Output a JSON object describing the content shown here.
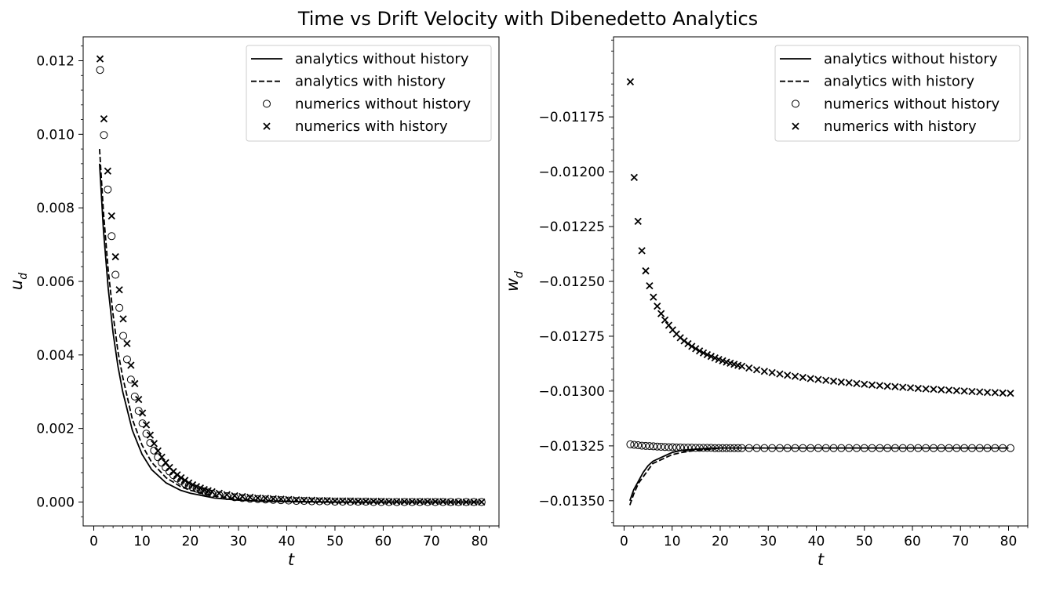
{
  "title": "Time vs Drift Velocity with Dibenedetto Analytics",
  "chart_data": [
    {
      "type": "line",
      "xlabel": "t",
      "ylabel_main": "u",
      "ylabel_sub": "d",
      "xlim": [
        -2.2,
        84
      ],
      "ylim": [
        -0.00065,
        0.01265
      ],
      "xticks": [
        0,
        10,
        20,
        30,
        40,
        50,
        60,
        70,
        80
      ],
      "xtick_labels": [
        "0",
        "10",
        "20",
        "30",
        "40",
        "50",
        "60",
        "70",
        "80"
      ],
      "yticks": [
        0.0,
        0.002,
        0.004,
        0.006,
        0.008,
        0.01,
        0.012
      ],
      "ytick_labels": [
        "0.000",
        "0.002",
        "0.004",
        "0.006",
        "0.008",
        "0.010",
        "0.012"
      ],
      "legend_position": "upper right",
      "legend": [
        "analytics without history",
        "analytics with history",
        "numerics without history",
        "numerics with history"
      ],
      "series": [
        {
          "name": "analytics without history",
          "style": "solid",
          "x": [
            1.2,
            2,
            3,
            4,
            5,
            6,
            8,
            10,
            12,
            15,
            18,
            20,
            25,
            30,
            35,
            40,
            50,
            60,
            70,
            80
          ],
          "y": [
            0.0092,
            0.0074,
            0.0058,
            0.0046,
            0.0037,
            0.003,
            0.00195,
            0.0013,
            0.00088,
            0.00052,
            0.00032,
            0.00024,
            0.00011,
            5e-05,
            2e-05,
            1e-05,
            0.0,
            0.0,
            0.0,
            0.0
          ]
        },
        {
          "name": "analytics with history",
          "style": "dashed",
          "x": [
            1.2,
            2,
            3,
            4,
            5,
            6,
            8,
            10,
            12,
            15,
            18,
            20,
            25,
            30,
            35,
            40,
            50,
            60,
            70,
            80
          ],
          "y": [
            0.0096,
            0.0079,
            0.0063,
            0.0051,
            0.0041,
            0.0034,
            0.00225,
            0.00155,
            0.00108,
            0.00066,
            0.00042,
            0.00032,
            0.00016,
            8e-05,
            4e-05,
            2e-05,
            0.0,
            0.0,
            0.0,
            0.0
          ]
        },
        {
          "name": "numerics without history",
          "style": "circle",
          "x": [
            1.3,
            2.1,
            2.9,
            3.7,
            4.5,
            5.3,
            6.1,
            6.9,
            7.7,
            8.5,
            9.3,
            10.1,
            10.9,
            11.7,
            12.5,
            13.3,
            14.1,
            14.9,
            15.7,
            16.5,
            17.3,
            18.1,
            18.9,
            19.7,
            20.5,
            21.3,
            22.1,
            22.9,
            23.7,
            24.5,
            26,
            27.6,
            29.2,
            30.8,
            32.4,
            34,
            35.6,
            37.2,
            38.8,
            40.4,
            42,
            43.6,
            45.2,
            46.8,
            48.4,
            50,
            51.6,
            53.2,
            54.8,
            56.4,
            58,
            59.6,
            61.2,
            62.8,
            64.4,
            66,
            67.6,
            69.2,
            70.8,
            72.4,
            74,
            75.6,
            77.2,
            78.8,
            80.4
          ],
          "y": [
            0.01175,
            0.00998,
            0.0085,
            0.00723,
            0.00618,
            0.00528,
            0.00452,
            0.00388,
            0.00333,
            0.00287,
            0.00248,
            0.00214,
            0.00186,
            0.00161,
            0.0014,
            0.00122,
            0.00107,
            0.00094,
            0.00083,
            0.00073,
            0.00064,
            0.00057,
            0.0005,
            0.00045,
            0.0004,
            0.00036,
            0.00032,
            0.00029,
            0.00026,
            0.00023,
            0.00019,
            0.00016,
            0.00013,
            0.00011,
            9e-05,
            8e-05,
            7e-05,
            6e-05,
            5e-05,
            4e-05,
            3e-05,
            3e-05,
            2e-05,
            2e-05,
            2e-05,
            1e-05,
            1e-05,
            1e-05,
            1e-05,
            1e-05,
            0.0,
            0.0,
            0.0,
            0.0,
            0.0,
            0.0,
            0.0,
            0.0,
            0.0,
            0.0,
            0.0,
            0.0,
            0.0,
            0.0,
            0.0
          ]
        },
        {
          "name": "numerics with history",
          "style": "x",
          "x": [
            1.3,
            2.1,
            2.9,
            3.7,
            4.5,
            5.3,
            6.1,
            6.9,
            7.7,
            8.5,
            9.3,
            10.1,
            10.9,
            11.7,
            12.5,
            13.3,
            14.1,
            14.9,
            15.7,
            16.5,
            17.3,
            18.1,
            18.9,
            19.7,
            20.5,
            21.3,
            22.1,
            22.9,
            23.7,
            24.5,
            26,
            27.6,
            29.2,
            30.8,
            32.4,
            34,
            35.6,
            37.2,
            38.8,
            40.4,
            42,
            43.6,
            45.2,
            46.8,
            48.4,
            50,
            51.6,
            53.2,
            54.8,
            56.4,
            58,
            59.6,
            61.2,
            62.8,
            64.4,
            66,
            67.6,
            69.2,
            70.8,
            72.4,
            74,
            75.6,
            77.2,
            78.8,
            80.4
          ],
          "y": [
            0.01205,
            0.01042,
            0.009,
            0.00778,
            0.00667,
            0.00577,
            0.00498,
            0.00431,
            0.00372,
            0.00322,
            0.00279,
            0.00242,
            0.0021,
            0.00182,
            0.00159,
            0.00139,
            0.00122,
            0.00107,
            0.00094,
            0.00083,
            0.00074,
            0.00066,
            0.00059,
            0.00052,
            0.00047,
            0.00042,
            0.00038,
            0.00034,
            0.00031,
            0.00028,
            0.00024,
            0.0002,
            0.00017,
            0.00015,
            0.00013,
            0.00011,
            0.0001,
            9e-05,
            8e-05,
            7e-05,
            6e-05,
            5e-05,
            5e-05,
            4e-05,
            4e-05,
            3e-05,
            3e-05,
            3e-05,
            2e-05,
            2e-05,
            2e-05,
            2e-05,
            1e-05,
            1e-05,
            1e-05,
            1e-05,
            1e-05,
            1e-05,
            1e-05,
            1e-05,
            0.0,
            0.0,
            0.0,
            0.0,
            0.0
          ]
        }
      ]
    },
    {
      "type": "line",
      "xlabel": "t",
      "ylabel_main": "w",
      "ylabel_sub": "d",
      "xlim": [
        -2.2,
        84
      ],
      "ylim": [
        -0.013615,
        -0.011385
      ],
      "xticks": [
        0,
        10,
        20,
        30,
        40,
        50,
        60,
        70,
        80
      ],
      "xtick_labels": [
        "0",
        "10",
        "20",
        "30",
        "40",
        "50",
        "60",
        "70",
        "80"
      ],
      "yticks": [
        -0.0135,
        -0.01325,
        -0.013,
        -0.01275,
        -0.0125,
        -0.01225,
        -0.012,
        -0.01175
      ],
      "ytick_labels": [
        "−0.01350",
        "−0.01325",
        "−0.01300",
        "−0.01275",
        "−0.01250",
        "−0.01225",
        "−0.01200",
        "−0.01175"
      ],
      "legend_position": "upper right",
      "legend": [
        "analytics without history",
        "analytics with history",
        "numerics without history",
        "numerics with history"
      ],
      "series": [
        {
          "name": "analytics without history",
          "style": "solid",
          "x": [
            1.2,
            2,
            3,
            4,
            5,
            6,
            8,
            10,
            12,
            15,
            18,
            20,
            25,
            30,
            40,
            50,
            60,
            70,
            80
          ],
          "y": [
            -0.0135,
            -0.01345,
            -0.01341,
            -0.01337,
            -0.01334,
            -0.01332,
            -0.0133,
            -0.01328,
            -0.01327,
            -0.013265,
            -0.01326,
            -0.01326,
            -0.01326,
            -0.01326,
            -0.01326,
            -0.01326,
            -0.01326,
            -0.01326,
            -0.01326
          ]
        },
        {
          "name": "analytics with history",
          "style": "dashed",
          "x": [
            1.2,
            2,
            3,
            4,
            5,
            6,
            8,
            10,
            12,
            15,
            18,
            20,
            25,
            30,
            40,
            50,
            60,
            70,
            80
          ],
          "y": [
            -0.01352,
            -0.01347,
            -0.01342,
            -0.01339,
            -0.01336,
            -0.01333,
            -0.01331,
            -0.01329,
            -0.01328,
            -0.01327,
            -0.013265,
            -0.01326,
            -0.01326,
            -0.01326,
            -0.01326,
            -0.01326,
            -0.01326,
            -0.01326,
            -0.01326
          ]
        },
        {
          "name": "numerics without history",
          "style": "circle",
          "x": [
            1.3,
            2.1,
            2.9,
            3.7,
            4.5,
            5.3,
            6.1,
            6.9,
            7.7,
            8.5,
            9.3,
            10.1,
            10.9,
            11.7,
            12.5,
            13.3,
            14.1,
            14.9,
            15.7,
            16.5,
            17.3,
            18.1,
            18.9,
            19.7,
            20.5,
            21.3,
            22.1,
            22.9,
            23.7,
            24.5,
            26,
            27.6,
            29.2,
            30.8,
            32.4,
            34,
            35.6,
            37.2,
            38.8,
            40.4,
            42,
            43.6,
            45.2,
            46.8,
            48.4,
            50,
            51.6,
            53.2,
            54.8,
            56.4,
            58,
            59.6,
            61.2,
            62.8,
            64.4,
            66,
            67.6,
            69.2,
            70.8,
            72.4,
            74,
            75.6,
            77.2,
            78.8,
            80.4
          ],
          "y": [
            -0.013243,
            -0.013245,
            -0.013247,
            -0.013249,
            -0.01325,
            -0.013251,
            -0.013252,
            -0.013253,
            -0.013254,
            -0.013255,
            -0.013256,
            -0.013256,
            -0.013257,
            -0.013257,
            -0.013258,
            -0.013258,
            -0.013258,
            -0.013259,
            -0.013259,
            -0.013259,
            -0.013259,
            -0.013259,
            -0.01326,
            -0.01326,
            -0.01326,
            -0.01326,
            -0.01326,
            -0.01326,
            -0.01326,
            -0.01326,
            -0.01326,
            -0.01326,
            -0.01326,
            -0.01326,
            -0.01326,
            -0.01326,
            -0.01326,
            -0.01326,
            -0.01326,
            -0.01326,
            -0.01326,
            -0.01326,
            -0.01326,
            -0.01326,
            -0.01326,
            -0.01326,
            -0.01326,
            -0.01326,
            -0.01326,
            -0.01326,
            -0.01326,
            -0.01326,
            -0.01326,
            -0.01326,
            -0.01326,
            -0.01326,
            -0.01326,
            -0.01326,
            -0.01326,
            -0.01326,
            -0.01326,
            -0.01326,
            -0.01326,
            -0.01326,
            -0.01326
          ]
        },
        {
          "name": "numerics with history",
          "style": "x",
          "x": [
            1.3,
            2.1,
            2.9,
            3.7,
            4.5,
            5.3,
            6.1,
            6.9,
            7.7,
            8.5,
            9.3,
            10.1,
            10.9,
            11.7,
            12.5,
            13.3,
            14.1,
            14.9,
            15.7,
            16.5,
            17.3,
            18.1,
            18.9,
            19.7,
            20.5,
            21.3,
            22.1,
            22.9,
            23.7,
            24.5,
            26,
            27.6,
            29.2,
            30.8,
            32.4,
            34,
            35.6,
            37.2,
            38.8,
            40.4,
            42,
            43.6,
            45.2,
            46.8,
            48.4,
            50,
            51.6,
            53.2,
            54.8,
            56.4,
            58,
            59.6,
            61.2,
            62.8,
            64.4,
            66,
            67.6,
            69.2,
            70.8,
            72.4,
            74,
            75.6,
            77.2,
            78.8,
            80.4
          ],
          "y": [
            -0.01159,
            -0.012026,
            -0.012226,
            -0.01236,
            -0.012452,
            -0.01252,
            -0.012572,
            -0.012613,
            -0.012647,
            -0.012676,
            -0.0127,
            -0.012721,
            -0.01274,
            -0.012757,
            -0.012771,
            -0.012784,
            -0.012796,
            -0.012807,
            -0.012817,
            -0.012826,
            -0.012834,
            -0.012842,
            -0.012849,
            -0.012856,
            -0.012862,
            -0.012868,
            -0.012873,
            -0.012878,
            -0.012883,
            -0.012887,
            -0.012895,
            -0.012903,
            -0.01291,
            -0.012916,
            -0.012922,
            -0.012928,
            -0.012933,
            -0.012938,
            -0.012943,
            -0.012947,
            -0.012951,
            -0.012955,
            -0.012959,
            -0.012962,
            -0.012966,
            -0.012969,
            -0.012972,
            -0.012975,
            -0.012978,
            -0.01298,
            -0.012983,
            -0.012985,
            -0.012988,
            -0.01299,
            -0.012992,
            -0.012994,
            -0.012996,
            -0.012998,
            -0.013,
            -0.013002,
            -0.013004,
            -0.013006,
            -0.013007,
            -0.013009,
            -0.01301
          ]
        }
      ]
    }
  ]
}
